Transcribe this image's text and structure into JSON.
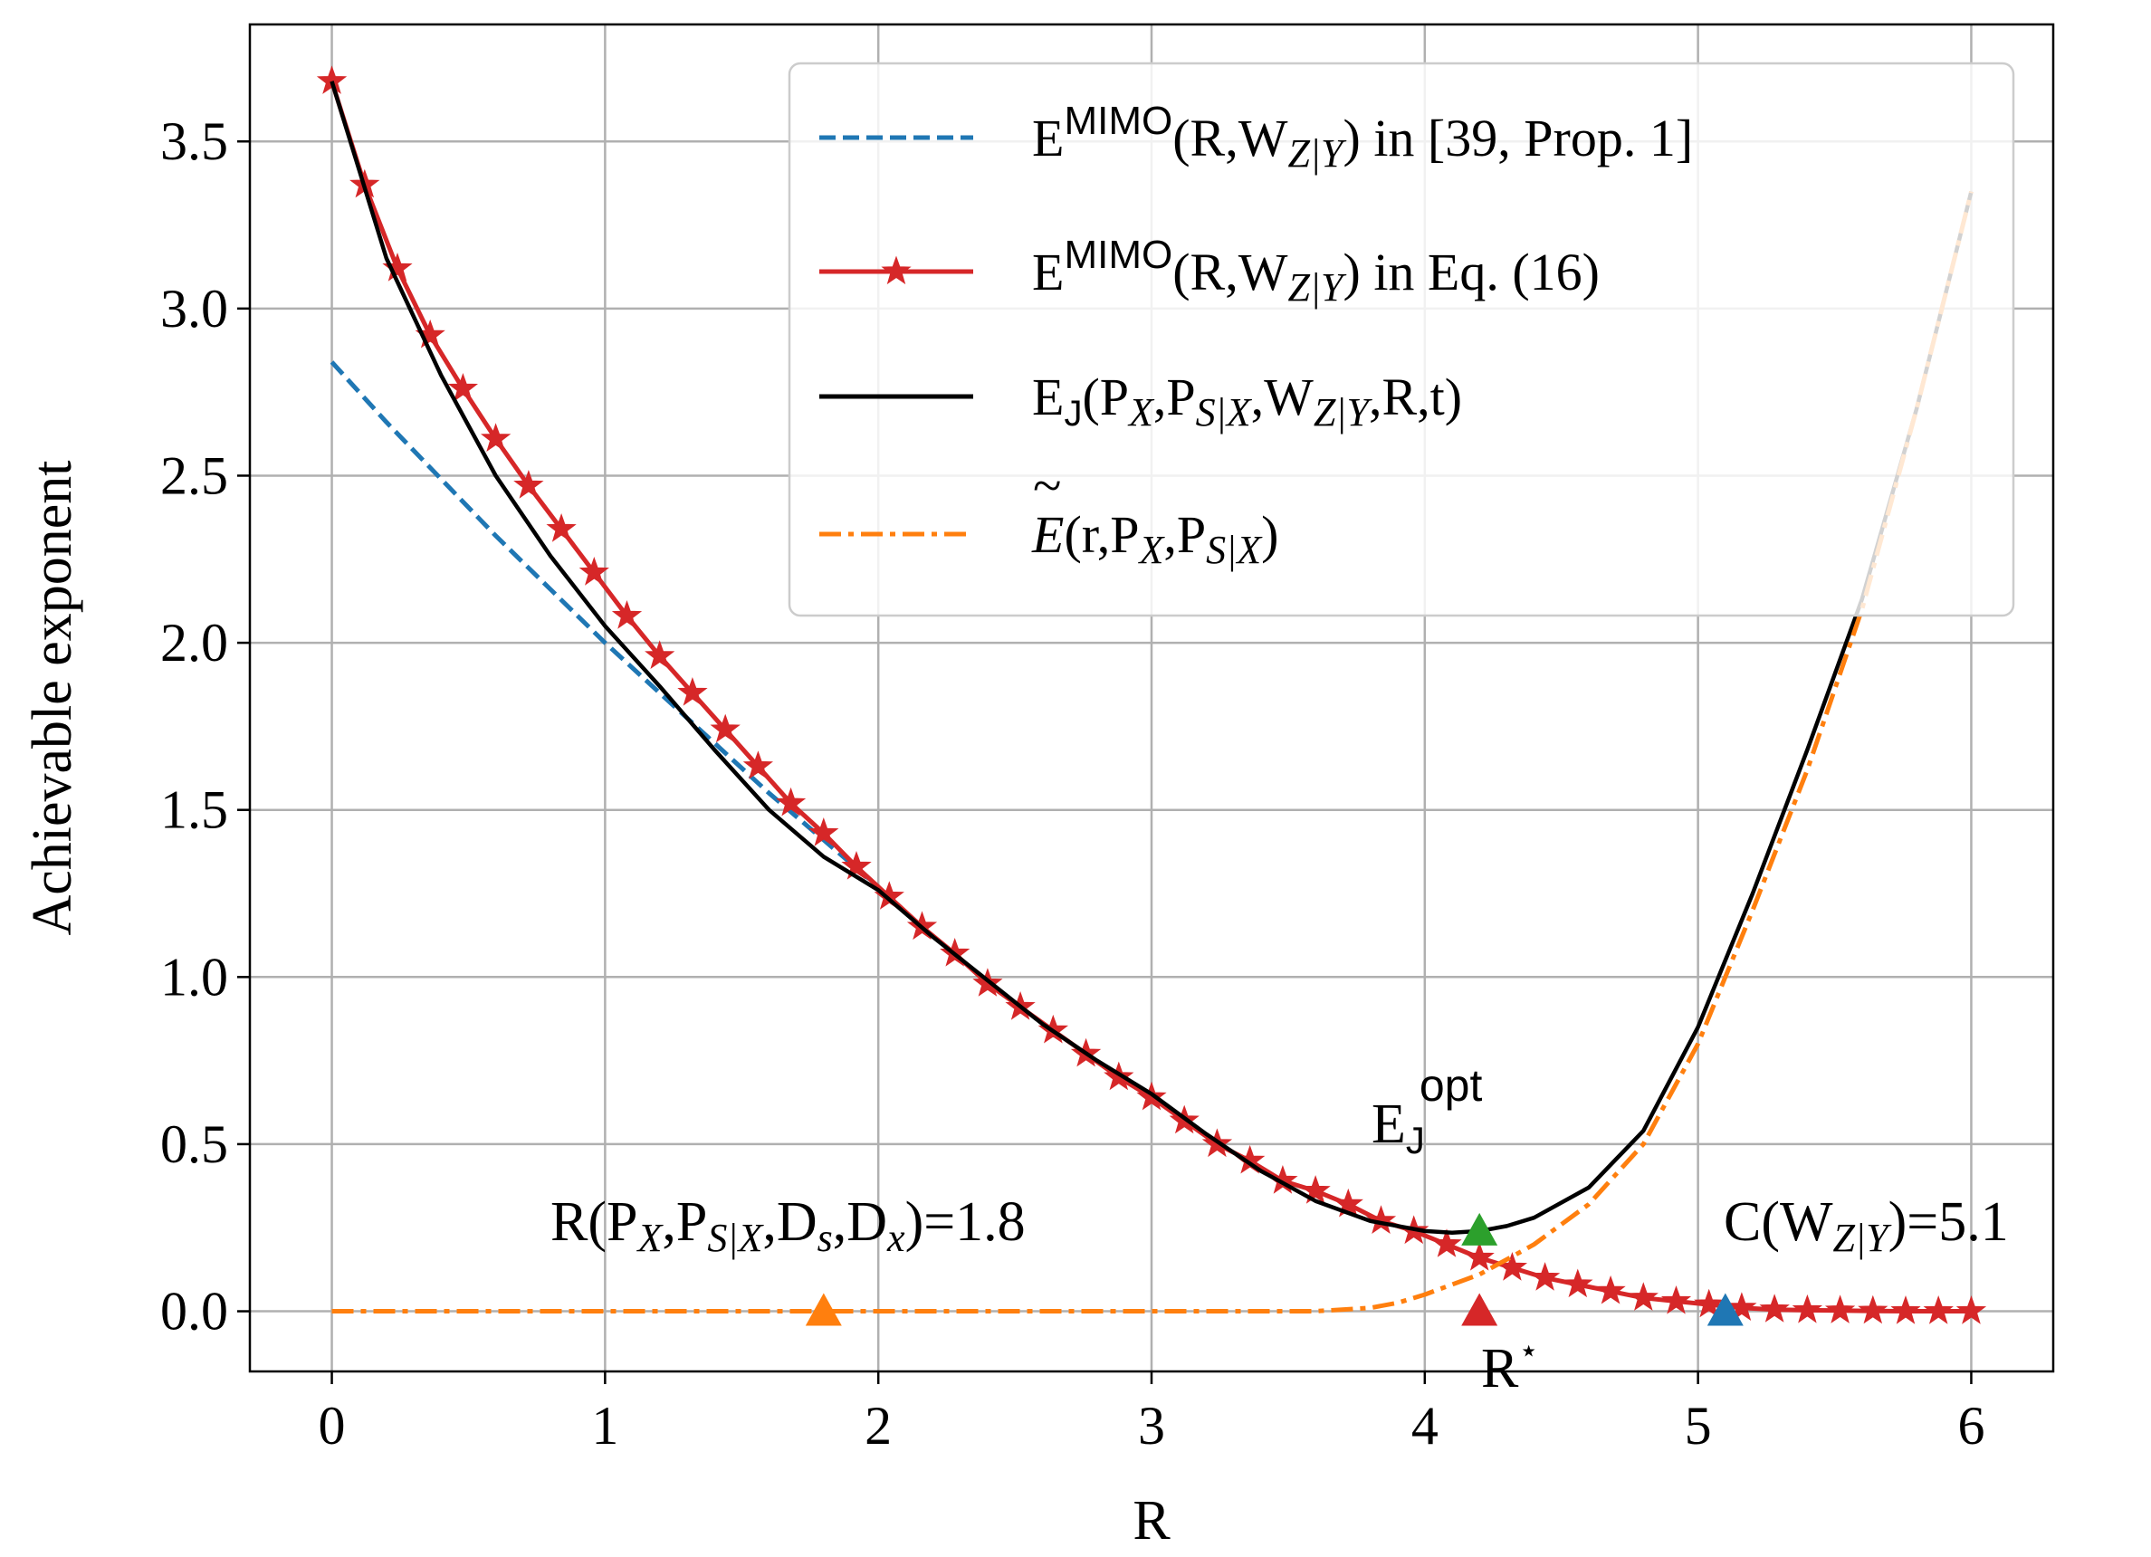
{
  "chart_data": {
    "type": "line",
    "xlabel": "R",
    "ylabel": "Achievable exponent",
    "xlim": [
      -0.3,
      6.3
    ],
    "ylim": [
      -0.18,
      3.85
    ],
    "xticks": [
      0,
      1,
      2,
      3,
      4,
      5,
      6
    ],
    "yticks": [
      0.0,
      0.5,
      1.0,
      1.5,
      2.0,
      2.5,
      3.0,
      3.5
    ],
    "xtick_labels": [
      "0",
      "1",
      "2",
      "3",
      "4",
      "5",
      "6"
    ],
    "ytick_labels": [
      "0.0",
      "0.5",
      "1.0",
      "1.5",
      "2.0",
      "2.5",
      "3.0",
      "3.5"
    ],
    "grid": true,
    "legend_position": "upper right",
    "series": [
      {
        "key": "prop1",
        "name": "E^MIMO(R,W_Z|Y) in [39, Prop. 1]",
        "color": "#1f77b4",
        "style": "dashed",
        "x": [
          0,
          0.2,
          0.4,
          0.6,
          0.8,
          1.0,
          1.2,
          1.4,
          1.6,
          1.8,
          2.0
        ],
        "y": [
          2.84,
          2.66,
          2.49,
          2.32,
          2.16,
          2.0,
          1.85,
          1.7,
          1.55,
          1.41,
          1.27
        ]
      },
      {
        "key": "eq16",
        "name": "E^MIMO(R,W_Z|Y) in Eq. (16)",
        "color": "#d62728",
        "style": "solid-star",
        "x": [
          0,
          0.12,
          0.24,
          0.36,
          0.48,
          0.6,
          0.72,
          0.84,
          0.96,
          1.08,
          1.2,
          1.32,
          1.44,
          1.56,
          1.68,
          1.8,
          1.92,
          2.04,
          2.16,
          2.28,
          2.4,
          2.52,
          2.64,
          2.76,
          2.88,
          3.0,
          3.12,
          3.24,
          3.36,
          3.48,
          3.6,
          3.72,
          3.84,
          3.96,
          4.08,
          4.2,
          4.32,
          4.44,
          4.56,
          4.68,
          4.8,
          4.92,
          5.04,
          5.16,
          5.28,
          5.4,
          5.52,
          5.64,
          5.76,
          5.88,
          6.0
        ],
        "y": [
          3.68,
          3.37,
          3.12,
          2.92,
          2.76,
          2.61,
          2.47,
          2.34,
          2.21,
          2.08,
          1.96,
          1.85,
          1.74,
          1.63,
          1.52,
          1.43,
          1.33,
          1.24,
          1.15,
          1.07,
          0.98,
          0.91,
          0.84,
          0.77,
          0.7,
          0.64,
          0.57,
          0.5,
          0.45,
          0.39,
          0.36,
          0.32,
          0.27,
          0.24,
          0.2,
          0.16,
          0.13,
          0.1,
          0.08,
          0.06,
          0.04,
          0.03,
          0.02,
          0.01,
          0.005,
          0.003,
          0.002,
          0.001,
          0.0,
          0.0,
          0.0
        ]
      },
      {
        "key": "ej",
        "name": "E_J(P_X,P_S|X,W_Z|Y,R,t)",
        "color": "#000000",
        "style": "solid",
        "x": [
          0,
          0.2,
          0.4,
          0.6,
          0.8,
          1.0,
          1.2,
          1.4,
          1.6,
          1.8,
          2.0,
          2.2,
          2.4,
          2.6,
          2.8,
          3.0,
          3.2,
          3.4,
          3.6,
          3.8,
          4.0,
          4.1,
          4.2,
          4.3,
          4.4,
          4.6,
          4.8,
          5.0,
          5.2,
          5.4,
          5.6,
          5.8,
          6.0
        ],
        "y": [
          3.68,
          3.15,
          2.8,
          2.5,
          2.26,
          2.05,
          1.87,
          1.68,
          1.5,
          1.36,
          1.26,
          1.12,
          0.99,
          0.86,
          0.75,
          0.65,
          0.53,
          0.42,
          0.33,
          0.27,
          0.24,
          0.235,
          0.24,
          0.255,
          0.28,
          0.37,
          0.54,
          0.85,
          1.25,
          1.68,
          2.13,
          2.7,
          3.35
        ]
      },
      {
        "key": "etilde",
        "name": "~E(r,P_X,P_S|X)",
        "color": "#ff7f0e",
        "style": "dashdot",
        "x": [
          0,
          1.0,
          2.0,
          3.0,
          3.6,
          3.8,
          3.9,
          4.0,
          4.1,
          4.2,
          4.4,
          4.6,
          4.8,
          5.0,
          5.2,
          5.4,
          5.6,
          5.8,
          6.0
        ],
        "y": [
          0,
          0,
          0,
          0,
          0,
          0.01,
          0.025,
          0.05,
          0.08,
          0.11,
          0.2,
          0.32,
          0.5,
          0.8,
          1.2,
          1.62,
          2.1,
          2.7,
          3.35
        ]
      }
    ],
    "markers": [
      {
        "key": "m_rate",
        "x": 1.8,
        "y": 0.0,
        "color": "#ff7f0e"
      },
      {
        "key": "m_rstar",
        "x": 4.2,
        "y": 0.0,
        "color": "#d62728"
      },
      {
        "key": "m_eopt",
        "x": 4.2,
        "y": 0.24,
        "color": "#2ca02c"
      },
      {
        "key": "m_cap",
        "x": 5.1,
        "y": 0.0,
        "color": "#1f77b4"
      }
    ],
    "annotations": {
      "rate_label": "R(P_X,P_S|X,D_s,D_x)=1.8",
      "eopt_label": "E_J^opt",
      "rstar_label": "R*",
      "capacity_label": "C(W_Z|Y)=5.1"
    }
  },
  "legend": {
    "item1": {
      "E": "E",
      "sup": "MIMO",
      "mid": "(R,W",
      "sub": "Z|Y",
      "tail": ") in [39, Prop. 1]"
    },
    "item2": {
      "E": "E",
      "sup": "MIMO",
      "mid": "(R,W",
      "sub": "Z|Y",
      "tail": ") in Eq. (16)"
    },
    "item3": {
      "E": "E",
      "sub0": "J",
      "p1": "(P",
      "s1": "X",
      "p2": ",P",
      "s2": "S|X",
      "p3": ",W",
      "s3": "Z|Y",
      "tail": ",R,t)"
    },
    "item4": {
      "E": "E",
      "tilde": "~",
      "p1": "(r,P",
      "s1": "X",
      "p2": ",P",
      "s2": "S|X",
      "tail": ")"
    }
  },
  "annot_text": {
    "rate": {
      "a": "R(P",
      "s1": "X",
      "b": ",P",
      "s2": "S|X",
      "c": ",D",
      "s3": "s",
      "d": ",D",
      "s4": "x",
      "e": ")=1.8"
    },
    "eopt": {
      "a": "E",
      "sub": "J",
      "sup": "opt"
    },
    "rstar": {
      "a": "R",
      "sup": "⋆"
    },
    "cap": {
      "a": "C(W",
      "sub": "Z|Y",
      "b": ")=5.1"
    }
  }
}
